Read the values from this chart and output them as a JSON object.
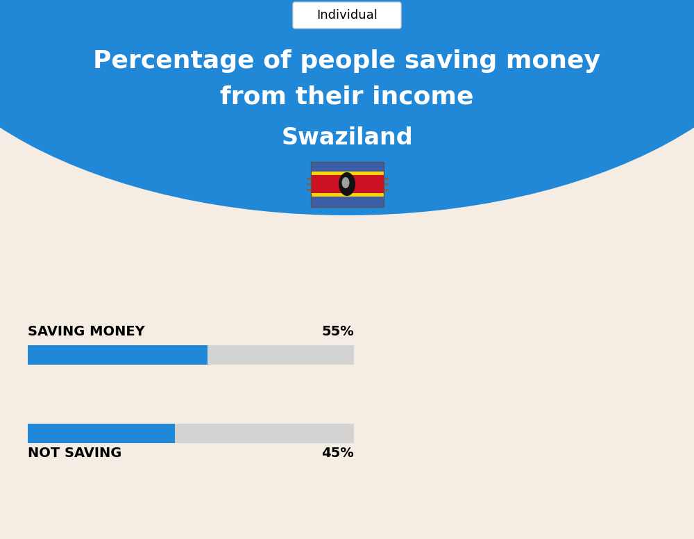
{
  "title_line1": "Percentage of people saving money",
  "title_line2": "from their income",
  "country": "Swaziland",
  "tab_label": "Individual",
  "bg_color": "#f5ede3",
  "blue_color": "#2188d8",
  "bar_bg_color": "#d3d3d3",
  "bar_active_color": "#2188d8",
  "title_color": "#ffffff",
  "country_color": "#ffffff",
  "label_color": "#000000",
  "saving_label": "SAVING MONEY",
  "saving_value": 55,
  "saving_pct_text": "55%",
  "not_saving_label": "NOT SAVING",
  "not_saving_value": 45,
  "not_saving_pct_text": "45%",
  "fig_width": 10.0,
  "fig_height": 7.76,
  "dpi": 100
}
